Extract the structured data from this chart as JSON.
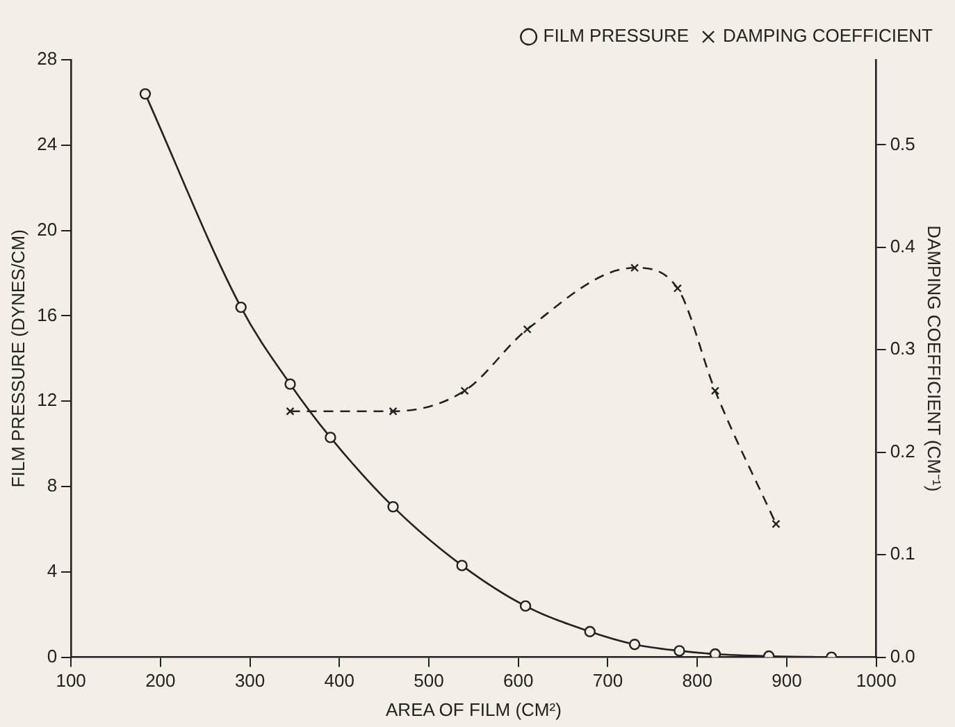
{
  "chart_data": {
    "type": "line",
    "xlabel": "AREA OF FILM (CM²)",
    "ylabel": "FILM PRESSURE (DYNES/CM)",
    "y2label": "DAMPING COEFFICIENT (CM⁻¹)",
    "xlim": [
      100,
      1000
    ],
    "xticks": [
      100,
      200,
      300,
      400,
      500,
      600,
      700,
      800,
      900,
      1000
    ],
    "ylim": [
      0,
      28
    ],
    "yticks": [
      0,
      4,
      8,
      12,
      16,
      20,
      24,
      28
    ],
    "y2lim": [
      0,
      0.583
    ],
    "y2ticks": [
      {
        "value": 0,
        "label": "0.0"
      },
      0.1,
      0.2,
      0.3,
      0.4,
      0.5
    ],
    "grid": false,
    "legend": "top right",
    "series": [
      {
        "name": "FILM PRESSURE",
        "color": "#222222",
        "marker": "circle",
        "line_style": "solid",
        "x": [
          183,
          290,
          345,
          390,
          460,
          537,
          608,
          680,
          730,
          780,
          820,
          880,
          950
        ],
        "values": [
          26.4,
          16.4,
          12.8,
          10.3,
          7.05,
          4.3,
          2.4,
          1.2,
          0.6,
          0.3,
          0.15,
          0.05,
          0
        ]
      },
      {
        "name": "DAMPING COEFFICIENT",
        "color": "#222222",
        "marker": "cross",
        "line_style": "dashed",
        "axis": "y2",
        "x": [
          345,
          460,
          540,
          610,
          730,
          778,
          820,
          888
        ],
        "values": [
          0.24,
          0.24,
          0.26,
          0.32,
          0.38,
          0.36,
          0.26,
          0.13
        ]
      }
    ]
  }
}
